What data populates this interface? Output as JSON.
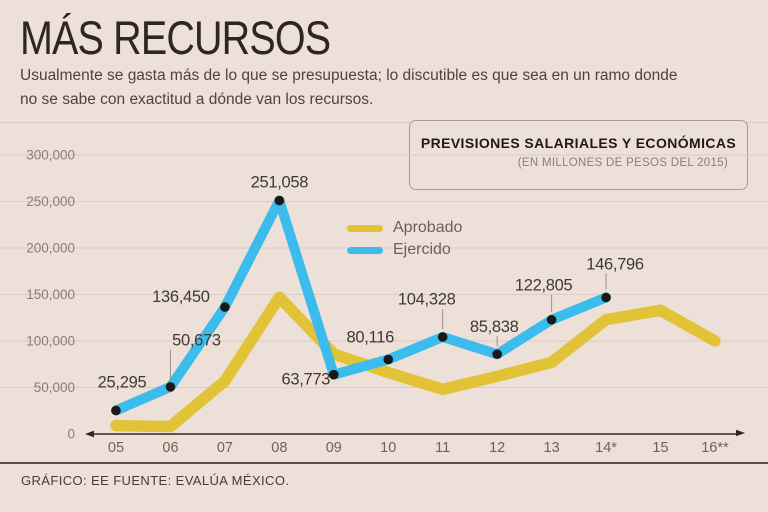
{
  "header": {
    "title": "MÁS RECURSOS",
    "subtitle_lines": [
      "Usualmente se gasta más de lo que se presupuesta; lo discutible es que  sea en un ramo donde",
      "no se sabe con exactitud a dónde van los recursos."
    ]
  },
  "info_box": {
    "title": "PREVISIONES SALARIALES Y ECONÓMICAS",
    "subtitle": "(EN MILLONES DE PESOS DEL 2015)"
  },
  "legend": [
    {
      "label": "Aprobado",
      "color": "#e2c337"
    },
    {
      "label": "Ejercido",
      "color": "#3bbcec"
    }
  ],
  "colors": {
    "background": "#ede0d8",
    "gridline": "#dccdc4",
    "axis": "#2e2821",
    "marker": "#1b1915",
    "aprobado": "#e2c337",
    "ejercido": "#3bbcec"
  },
  "chart_data": {
    "type": "line",
    "title": "Previsiones salariales y económicas (en millones de pesos del 2015)",
    "categories": [
      "05",
      "06",
      "07",
      "08",
      "09",
      "10",
      "11",
      "12",
      "13",
      "14*",
      "15",
      "16**"
    ],
    "series": [
      {
        "name": "Aprobado",
        "color": "#e2c337",
        "values": [
          9000,
          8000,
          57000,
          147000,
          86000,
          66000,
          48000,
          62000,
          77000,
          123000,
          133000,
          100000
        ]
      },
      {
        "name": "Ejercido",
        "color": "#3bbcec",
        "values": [
          25295,
          50673,
          136450,
          251058,
          63773,
          80116,
          104328,
          85838,
          122805,
          146796,
          null,
          null
        ],
        "point_labels": [
          "25,295",
          "50,673",
          "136,450",
          "251,058",
          "63,773",
          "80,116",
          "104,328",
          "85,838",
          "122,805",
          "146,796"
        ]
      }
    ],
    "xlabel": "",
    "ylabel": "",
    "ylim": [
      0,
      300000
    ],
    "ytick_labels": [
      "300,000",
      "250,000",
      "200,000",
      "150,000",
      "100,000",
      "50,000",
      "0"
    ],
    "ytick_values": [
      300000,
      250000,
      200000,
      150000,
      100000,
      50000,
      0
    ],
    "grid": true,
    "legend_position": "top-center"
  },
  "footer": {
    "credit": "GRÁFICO: EE  FUENTE: EVALÚA MÉXICO."
  }
}
